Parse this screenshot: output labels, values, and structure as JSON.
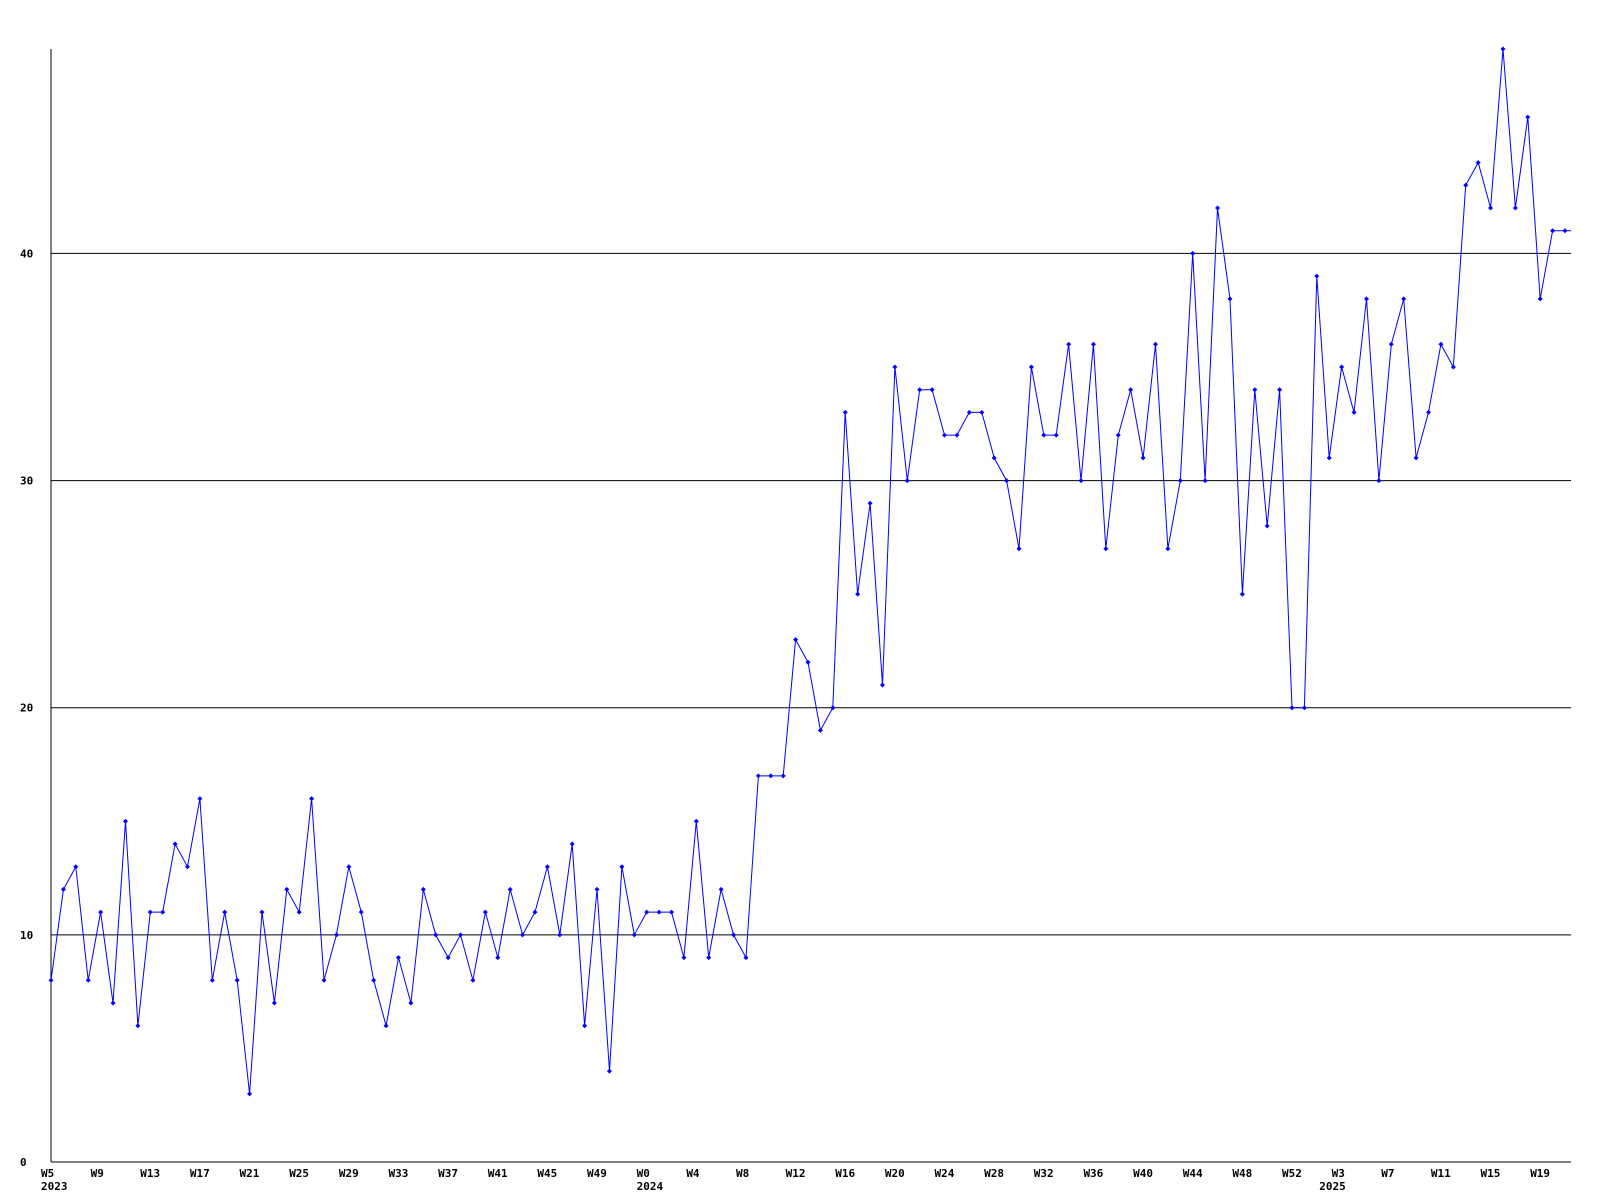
{
  "chart_data": {
    "type": "line",
    "categories": [
      "W5",
      null,
      null,
      null,
      "W9",
      null,
      null,
      null,
      "W13",
      null,
      null,
      null,
      "W17",
      null,
      null,
      null,
      "W21",
      null,
      null,
      null,
      "W25",
      null,
      null,
      null,
      "W29",
      null,
      null,
      null,
      "W33",
      null,
      null,
      null,
      "W37",
      null,
      null,
      null,
      "W41",
      null,
      null,
      null,
      "W45",
      null,
      null,
      null,
      "W49",
      null,
      null,
      null,
      "W0",
      null,
      null,
      null,
      "W4",
      null,
      null,
      null,
      "W8",
      null,
      null,
      null,
      "W12",
      null,
      null,
      null,
      "W16",
      null,
      null,
      null,
      "W20",
      null,
      null,
      null,
      "W24",
      null,
      null,
      null,
      "W28",
      null,
      null,
      null,
      "W32",
      null,
      null,
      null,
      "W36",
      null,
      null,
      null,
      "W40",
      null,
      null,
      null,
      "W44",
      null,
      null,
      null,
      "W48",
      null,
      null,
      null,
      "W52",
      null,
      null,
      null,
      "W3",
      null,
      null,
      null,
      "W7",
      null,
      null,
      null,
      "W11",
      null,
      null,
      null,
      "W15",
      null,
      null,
      null,
      "W19",
      null,
      null
    ],
    "category_years": [
      "2023",
      null,
      null,
      null,
      null,
      null,
      null,
      null,
      null,
      null,
      null,
      null,
      null,
      null,
      null,
      null,
      null,
      null,
      null,
      null,
      null,
      null,
      null,
      null,
      null,
      null,
      null,
      null,
      null,
      null,
      null,
      null,
      null,
      null,
      null,
      null,
      null,
      null,
      null,
      null,
      null,
      null,
      null,
      null,
      null,
      null,
      null,
      null,
      "2024",
      null,
      null,
      null,
      null,
      null,
      null,
      null,
      null,
      null,
      null,
      null,
      null,
      null,
      null,
      null,
      null,
      null,
      null,
      null,
      null,
      null,
      null,
      null,
      null,
      null,
      null,
      null,
      null,
      null,
      null,
      null,
      null,
      null,
      null,
      null,
      null,
      null,
      null,
      null,
      null,
      null,
      null,
      null,
      null,
      null,
      null,
      null,
      null,
      null,
      null,
      null,
      null,
      null,
      null,
      "2025",
      null,
      null,
      null,
      null,
      null,
      null,
      null,
      null,
      null,
      null,
      null,
      null,
      null,
      null,
      null,
      null,
      null,
      null,
      null,
      null,
      null
    ],
    "series": [
      {
        "color": "#0000ff",
        "values": [
          8,
          12,
          13,
          8,
          11,
          7,
          15,
          6,
          11,
          11,
          14,
          13,
          16,
          8,
          11,
          8,
          3,
          11,
          7,
          12,
          11,
          16,
          8,
          10,
          13,
          11,
          8,
          6,
          9,
          7,
          12,
          10,
          9,
          10,
          8,
          11,
          9,
          12,
          10,
          11,
          13,
          10,
          14,
          6,
          12,
          4,
          13,
          10,
          11,
          11,
          11,
          9,
          15,
          9,
          12,
          10,
          9,
          17,
          17,
          17,
          23,
          22,
          19,
          20,
          33,
          25,
          29,
          21,
          35,
          30,
          34,
          34,
          32,
          32,
          33,
          33,
          31,
          30,
          27,
          35,
          32,
          32,
          36,
          30,
          36,
          27,
          32,
          34,
          31,
          36,
          27,
          30,
          40,
          30,
          42,
          38,
          25,
          34,
          28,
          34,
          20,
          20,
          39,
          31,
          35,
          33,
          38,
          30,
          36,
          38,
          31,
          33,
          36,
          35,
          43,
          44,
          42,
          49,
          42,
          46,
          38,
          41,
          41
        ]
      }
    ],
    "ylim": [
      0,
      49
    ],
    "yticks": [
      0,
      10,
      20,
      30,
      40
    ],
    "grid": true
  }
}
